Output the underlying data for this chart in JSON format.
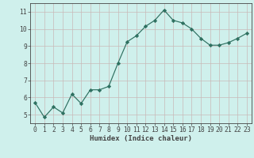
{
  "x": [
    0,
    1,
    2,
    3,
    4,
    5,
    6,
    7,
    8,
    9,
    10,
    11,
    12,
    13,
    14,
    15,
    16,
    17,
    18,
    19,
    20,
    21,
    22,
    23
  ],
  "y": [
    5.7,
    4.85,
    5.45,
    5.1,
    6.2,
    5.65,
    6.45,
    6.45,
    6.65,
    8.0,
    9.25,
    9.6,
    10.15,
    10.5,
    11.1,
    10.5,
    10.35,
    10.0,
    9.45,
    9.05,
    9.05,
    9.2,
    9.45,
    9.75
  ],
  "line_color": "#2e7060",
  "marker": "D",
  "marker_size": 2.2,
  "bg_color": "#cff0ec",
  "grid_color": "#c8b8b8",
  "xlabel": "Humidex (Indice chaleur)",
  "ylim": [
    4.5,
    11.5
  ],
  "xlim": [
    -0.5,
    23.5
  ],
  "yticks": [
    5,
    6,
    7,
    8,
    9,
    10,
    11
  ],
  "xticks": [
    0,
    1,
    2,
    3,
    4,
    5,
    6,
    7,
    8,
    9,
    10,
    11,
    12,
    13,
    14,
    15,
    16,
    17,
    18,
    19,
    20,
    21,
    22,
    23
  ],
  "axis_color": "#444444",
  "label_fontsize": 6.5,
  "tick_fontsize": 5.8
}
